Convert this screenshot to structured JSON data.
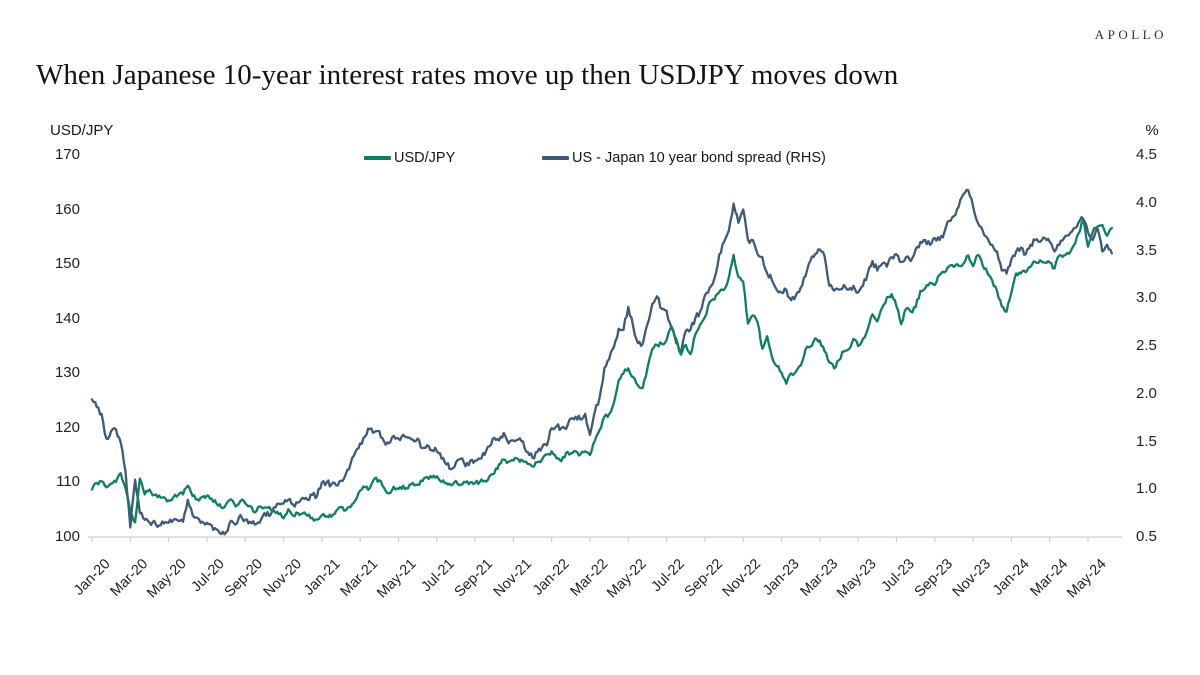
{
  "branding": {
    "logo_text": "APOLLO"
  },
  "header": {
    "title": "When Japanese 10-year interest rates move up then USDJPY moves down"
  },
  "chart_data": {
    "type": "line",
    "title": "When Japanese 10-year interest rates move up then USDJPY moves down",
    "grid": false,
    "legend_position": "top",
    "background": "#ffffff",
    "axis_line_color": "#cfcfcf",
    "left_axis": {
      "label": "USD/JPY",
      "range": [
        100,
        170
      ],
      "ticks": [
        "170",
        "160",
        "150",
        "140",
        "130",
        "120",
        "110",
        "100"
      ]
    },
    "right_axis": {
      "label": "%",
      "range": [
        0.5,
        4.5
      ],
      "ticks": [
        "4.5",
        "4.0",
        "3.5",
        "3.0",
        "2.5",
        "2.0",
        "1.5",
        "1.0",
        "0.5"
      ]
    },
    "x_axis": {
      "start": "Jan-20",
      "end": "May-24",
      "label_every_months": 2,
      "points_per_month": 4,
      "ticklabels": [
        "Jan-20",
        "Mar-20",
        "May-20",
        "Jul-20",
        "Sep-20",
        "Nov-20",
        "Jan-21",
        "Mar-21",
        "May-21",
        "Jul-21",
        "Sep-21",
        "Nov-21",
        "Jan-22",
        "Mar-22",
        "May-22",
        "Jul-22",
        "Sep-22",
        "Nov-22",
        "Jan-23",
        "Mar-23",
        "May-23",
        "Jul-23",
        "Sep-23",
        "Nov-23",
        "Jan-24",
        "Mar-24",
        "May-24"
      ]
    },
    "series": [
      {
        "name": "US - Japan 10 year bond spread (RHS)",
        "axis": "right",
        "color": "#3e5a76",
        "noise_amplitude": 0.032,
        "values": [
          1.94,
          1.86,
          1.79,
          1.53,
          1.61,
          1.63,
          1.49,
          1.19,
          0.6,
          1.1,
          0.75,
          0.68,
          0.65,
          0.67,
          0.62,
          0.64,
          0.65,
          0.68,
          0.67,
          0.66,
          0.89,
          0.73,
          0.7,
          0.66,
          0.65,
          0.62,
          0.58,
          0.53,
          0.55,
          0.67,
          0.63,
          0.73,
          0.68,
          0.66,
          0.63,
          0.65,
          0.75,
          0.72,
          0.81,
          0.85,
          0.85,
          0.89,
          0.84,
          0.86,
          0.91,
          0.89,
          0.94,
          0.93,
          1.07,
          1.07,
          1.05,
          1.04,
          1.09,
          1.16,
          1.27,
          1.39,
          1.48,
          1.55,
          1.63,
          1.6,
          1.61,
          1.5,
          1.48,
          1.56,
          1.53,
          1.57,
          1.54,
          1.52,
          1.53,
          1.43,
          1.46,
          1.41,
          1.4,
          1.32,
          1.26,
          1.21,
          1.28,
          1.32,
          1.24,
          1.3,
          1.3,
          1.32,
          1.36,
          1.45,
          1.54,
          1.51,
          1.59,
          1.48,
          1.51,
          1.52,
          1.5,
          1.39,
          1.33,
          1.39,
          1.44,
          1.46,
          1.64,
          1.66,
          1.64,
          1.63,
          1.74,
          1.76,
          1.73,
          1.79,
          1.57,
          1.81,
          1.96,
          2.27,
          2.36,
          2.49,
          2.68,
          2.67,
          2.91,
          2.71,
          2.53,
          2.52,
          2.73,
          2.94,
          3.02,
          2.89,
          2.87,
          2.69,
          2.53,
          2.44,
          2.66,
          2.67,
          2.79,
          2.86,
          3.03,
          3.11,
          3.21,
          3.46,
          3.59,
          3.71,
          3.99,
          3.79,
          3.93,
          3.61,
          3.61,
          3.46,
          3.43,
          3.26,
          3.19,
          3.09,
          3.06,
          3.09,
          2.98,
          3.03,
          3.11,
          3.23,
          3.39,
          3.46,
          3.51,
          3.44,
          3.13,
          3.08,
          3.09,
          3.14,
          3.09,
          3.13,
          3.06,
          3.13,
          3.26,
          3.39,
          3.29,
          3.36,
          3.33,
          3.43,
          3.46,
          3.38,
          3.43,
          3.39,
          3.51,
          3.59,
          3.61,
          3.56,
          3.63,
          3.61,
          3.69,
          3.81,
          3.86,
          3.96,
          4.09,
          4.13,
          3.96,
          3.79,
          3.71,
          3.63,
          3.56,
          3.49,
          3.29,
          3.26,
          3.41,
          3.49,
          3.53,
          3.46,
          3.56,
          3.61,
          3.59,
          3.63,
          3.59,
          3.49,
          3.56,
          3.63,
          3.66,
          3.73,
          3.79,
          3.83,
          3.69,
          3.61,
          3.73,
          3.49,
          3.56,
          3.47
        ]
      },
      {
        "name": "USD/JPY",
        "axis": "left",
        "color": "#0f7e63",
        "noise_amplitude": 0.42,
        "values": [
          108.7,
          109.9,
          110.2,
          109.1,
          109.8,
          110.1,
          111.7,
          109.0,
          104.6,
          102.7,
          110.7,
          107.8,
          108.7,
          107.7,
          107.6,
          107.3,
          106.7,
          107.3,
          107.7,
          107.8,
          109.4,
          107.5,
          106.9,
          107.3,
          107.6,
          107.0,
          106.1,
          105.4,
          106.0,
          106.9,
          105.6,
          106.6,
          106.2,
          105.7,
          104.5,
          105.6,
          105.4,
          105.5,
          104.8,
          104.2,
          103.4,
          105.1,
          103.9,
          104.4,
          104.3,
          103.9,
          103.5,
          103.2,
          104.0,
          103.8,
          103.7,
          104.8,
          105.5,
          104.9,
          105.5,
          106.7,
          108.5,
          109.1,
          108.9,
          110.7,
          110.4,
          109.0,
          108.0,
          109.2,
          108.8,
          109.4,
          108.9,
          109.9,
          109.6,
          110.2,
          111.0,
          110.9,
          111.1,
          110.1,
          109.9,
          109.5,
          110.3,
          109.6,
          110.0,
          110.0,
          109.9,
          110.1,
          110.3,
          111.1,
          111.6,
          113.3,
          114.2,
          113.8,
          114.0,
          114.3,
          113.9,
          113.4,
          112.9,
          113.7,
          114.2,
          115.1,
          115.7,
          114.4,
          113.9,
          115.4,
          115.3,
          115.7,
          115.1,
          115.7,
          115.0,
          117.6,
          119.6,
          122.1,
          122.5,
          124.6,
          128.7,
          130.0,
          130.9,
          129.3,
          127.8,
          127.3,
          131.0,
          134.4,
          135.2,
          135.4,
          136.1,
          138.6,
          136.3,
          133.4,
          135.2,
          133.5,
          137.1,
          138.9,
          140.3,
          143.1,
          143.5,
          144.9,
          145.3,
          147.6,
          151.7,
          147.6,
          146.8,
          139.1,
          140.6,
          139.3,
          134.5,
          136.8,
          133.0,
          131.3,
          130.1,
          128.1,
          130.0,
          130.3,
          131.4,
          134.4,
          134.9,
          136.4,
          136.0,
          134.0,
          132.0,
          130.9,
          132.4,
          134.0,
          134.4,
          136.3,
          135.0,
          136.3,
          138.1,
          140.8,
          139.5,
          142.0,
          143.9,
          144.5,
          142.3,
          139.0,
          141.8,
          141.3,
          142.1,
          145.1,
          145.6,
          146.6,
          146.2,
          148.0,
          148.5,
          149.6,
          149.5,
          149.7,
          150.1,
          151.6,
          149.6,
          151.7,
          149.8,
          148.4,
          147.0,
          145.1,
          142.3,
          141.3,
          144.8,
          148.3,
          148.3,
          148.5,
          149.5,
          150.4,
          150.7,
          150.3,
          150.3,
          149.2,
          151.6,
          151.6,
          151.9,
          153.4,
          155.6,
          158.1,
          153.2,
          156.0,
          156.9,
          157.2,
          155.2,
          156.6
        ]
      }
    ]
  }
}
